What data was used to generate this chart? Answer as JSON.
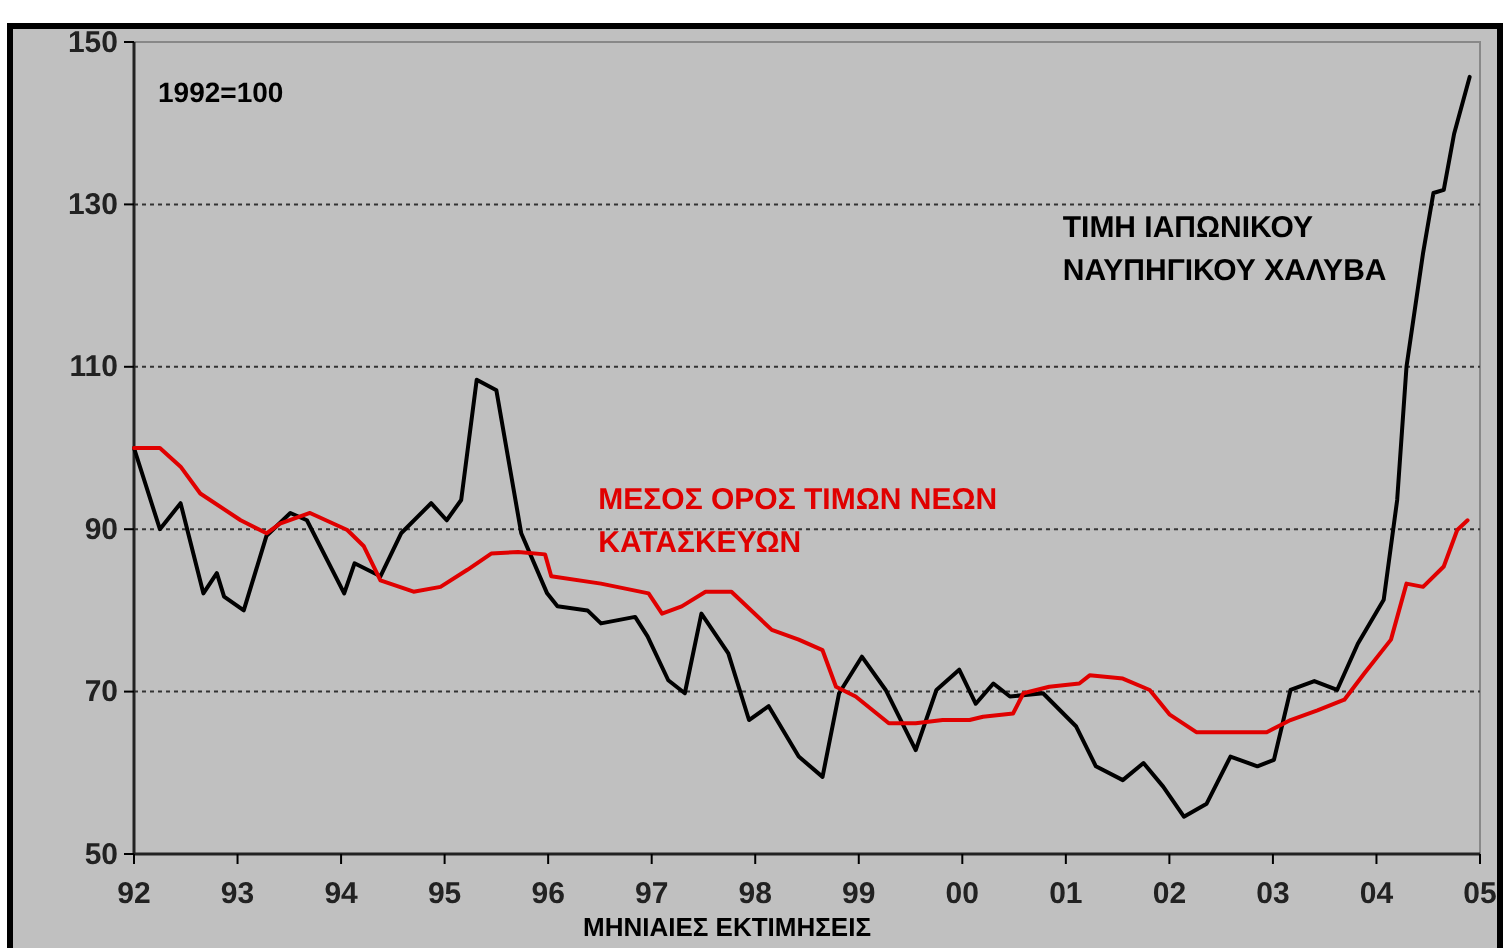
{
  "chart_data": {
    "type": "line",
    "xlabel": "ΜΗΝΙΑΙΕΣ ΕΚΤΙΜΗΣΕΙΣ",
    "annotations": [
      "1992=100"
    ],
    "xlim": [
      1992,
      2005
    ],
    "xticks": [
      {
        "value": 1992,
        "label": "92"
      },
      {
        "value": 1993,
        "label": "93"
      },
      {
        "value": 1994,
        "label": "94"
      },
      {
        "value": 1995,
        "label": "95"
      },
      {
        "value": 1996,
        "label": "96"
      },
      {
        "value": 1997,
        "label": "97"
      },
      {
        "value": 1998,
        "label": "98"
      },
      {
        "value": 1999,
        "label": "99"
      },
      {
        "value": 2000,
        "label": "00"
      },
      {
        "value": 2001,
        "label": "01"
      },
      {
        "value": 2002,
        "label": "02"
      },
      {
        "value": 2003,
        "label": "03"
      },
      {
        "value": 2004,
        "label": "04"
      },
      {
        "value": 2005,
        "label": "05"
      }
    ],
    "ylim": [
      50,
      150
    ],
    "yticks": [
      50,
      70,
      90,
      110,
      130,
      150
    ],
    "grid": "y",
    "legend": false,
    "marker": "none",
    "line_style": "solid",
    "series": [
      {
        "name": "ΤΙΜΗ ΙΑΠΩΝΙΚΟΥ ΝΑΥΠΗΓΙΚΟΥ ΧΑΛΥΒΑ",
        "color": "#000000",
        "x": [
          1992,
          1992.25,
          1992.45,
          1992.67,
          1992.8,
          1992.87,
          1993.06,
          1993.28,
          1993.51,
          1993.67,
          1994.03,
          1994.13,
          1994.38,
          1994.58,
          1994.87,
          1995.02,
          1995.16,
          1995.31,
          1995.5,
          1995.74,
          1995.99,
          1996.09,
          1996.38,
          1996.51,
          1996.84,
          1996.96,
          1997.16,
          1997.32,
          1997.48,
          1997.74,
          1997.94,
          1998.13,
          1998.42,
          1998.65,
          1998.81,
          1999.03,
          1999.26,
          1999.55,
          1999.75,
          1999.97,
          2000.13,
          2000.3,
          2000.46,
          2000.78,
          2001.1,
          2001.29,
          2001.55,
          2001.75,
          2001.94,
          2002.14,
          2002.36,
          2002.59,
          2002.85,
          2003.01,
          2003.17,
          2003.4,
          2003.62,
          2003.82,
          2004.07,
          2004.2,
          2004.29,
          2004.45,
          2004.55,
          2004.65,
          2004.75,
          2004.9
        ],
        "values": [
          100,
          90,
          93.2,
          82.1,
          84.6,
          81.7,
          80,
          89.2,
          92,
          91.1,
          82.1,
          85.8,
          84.2,
          89.5,
          93.2,
          91.1,
          93.6,
          108.4,
          107.1,
          89.5,
          82.1,
          80.5,
          80,
          78.4,
          79.2,
          76.8,
          71.4,
          69.8,
          79.6,
          74.7,
          66.5,
          68.2,
          62,
          59.5,
          69.8,
          74.3,
          70.2,
          62.8,
          70.2,
          72.7,
          68.5,
          71,
          69.4,
          69.8,
          65.7,
          60.8,
          59.1,
          61.2,
          58.3,
          54.6,
          56.2,
          62,
          60.8,
          61.6,
          70.2,
          71.3,
          70.2,
          75.9,
          81.3,
          93.6,
          110,
          124,
          131.4,
          131.8,
          138.7,
          145.7
        ]
      },
      {
        "name": "ΜΕΣΟΣ ΟΡΟΣ ΤΙΜΩΝ ΝΕΩΝ ΚΑΤΑΣΚΕΥΩΝ",
        "color": "#e00000",
        "x": [
          1992,
          1992.25,
          1992.45,
          1992.64,
          1993.03,
          1993.28,
          1993.41,
          1993.7,
          1994.06,
          1994.22,
          1994.38,
          1994.7,
          1994.96,
          1995.22,
          1995.45,
          1995.71,
          1995.97,
          1996.03,
          1996.51,
          1996.97,
          1997.1,
          1997.29,
          1997.52,
          1997.77,
          1998.16,
          1998.42,
          1998.65,
          1998.78,
          1998.97,
          1999.29,
          1999.55,
          1999.81,
          2000.07,
          2000.2,
          2000.49,
          2000.59,
          2000.84,
          2001.13,
          2001.23,
          2001.55,
          2001.81,
          2002,
          2002.26,
          2002.59,
          2002.94,
          2003.17,
          2003.43,
          2003.69,
          2003.88,
          2004.14,
          2004.29,
          2004.45,
          2004.65,
          2004.78,
          2004.88
        ],
        "values": [
          100,
          100,
          97.7,
          94.4,
          91.1,
          89.5,
          90.7,
          92,
          89.9,
          87.9,
          83.7,
          82.3,
          82.9,
          85,
          87,
          87.2,
          86.9,
          84.2,
          83.3,
          82.1,
          79.6,
          80.5,
          82.3,
          82.3,
          77.6,
          76.4,
          75.1,
          70.6,
          69.4,
          66.1,
          66.1,
          66.5,
          66.5,
          66.9,
          67.3,
          69.8,
          70.6,
          71,
          72,
          71.6,
          70.2,
          67.2,
          65,
          65,
          65,
          66.5,
          67.7,
          69,
          72.2,
          76.4,
          83.3,
          82.9,
          85.4,
          89.9,
          91.1
        ]
      }
    ]
  }
}
